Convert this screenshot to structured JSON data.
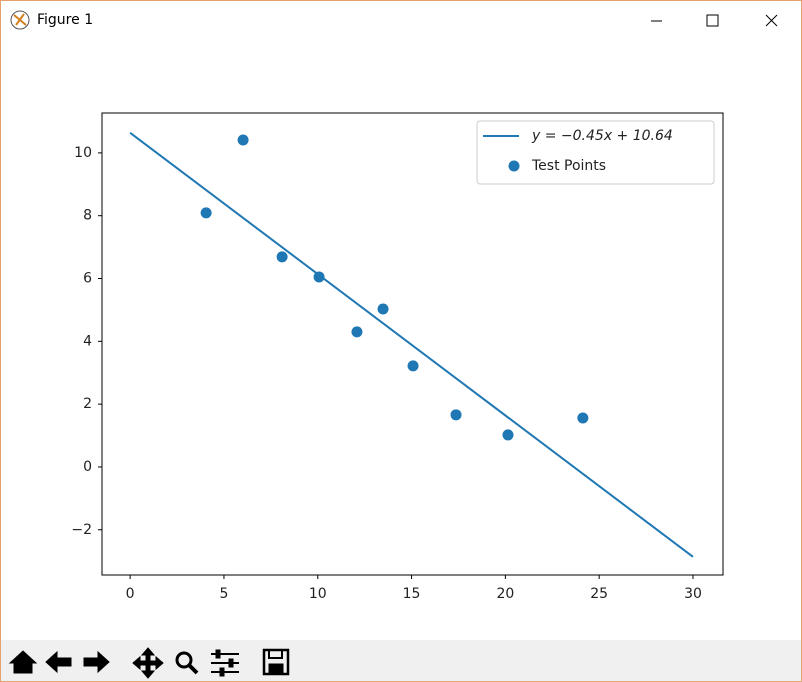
{
  "window": {
    "title": "Figure 1"
  },
  "chart_data": {
    "type": "scatter",
    "series": [
      {
        "name": "y = −0.45x + 10.64",
        "type": "line",
        "color": "#1f77b4",
        "x": [
          0,
          30
        ],
        "values": [
          10.64,
          -2.86
        ]
      },
      {
        "name": "Test Points",
        "type": "scatter",
        "color": "#1f77b4",
        "x": [
          4.05,
          6.02,
          8.1,
          10.07,
          12.09,
          13.48,
          15.08,
          17.37,
          20.14,
          24.13
        ],
        "values": [
          8.09,
          10.41,
          6.69,
          6.05,
          4.3,
          5.03,
          3.22,
          1.66,
          1.02,
          1.56
        ]
      }
    ],
    "xlim": [
      -1.5,
      31.6
    ],
    "ylim": [
      -3.44,
      11.27
    ],
    "xticks": [
      0,
      5,
      10,
      15,
      20,
      25,
      30
    ],
    "yticks": [
      {
        "value": -2,
        "label": "−2"
      },
      0,
      2,
      4,
      6,
      8,
      10
    ],
    "legend": "upper right"
  }
}
